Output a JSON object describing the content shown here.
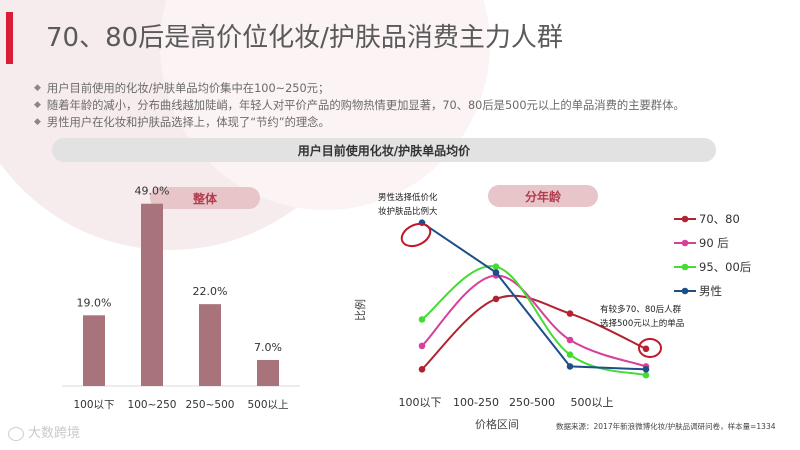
{
  "page_title": "70、80后是高价位化妆/护肤品消费主力人群",
  "bullets": [
    "用户目前使用的化妆/护肤单品均价集中在100~250元；",
    "随着年龄的减小，分布曲线越加陡峭，年轻人对平价产品的购物热情更加显著，70、80后是500元以上的单品消费的主要群体。",
    "男性用户在化妆和护肤品选择上，体现了“节约”的理念。"
  ],
  "bullet_symbol": "◆",
  "section_title": "用户目前使用化妆/护肤单品均价",
  "source_note": "数据来源：2017年新浪微博化妆/护肤品调研问卷，样本量=1334",
  "logo_text": "大数跨境",
  "colors": {
    "accent": "#d81e35",
    "bar": "#a8737a",
    "pill": "#e7c5c9",
    "pill_text": "#b23d4e",
    "section_bar": "#e2e2e2",
    "annotation_circle": "#c0182b"
  },
  "chart_data": [
    {
      "type": "bar",
      "title": "整体",
      "categories": [
        "100以下",
        "100~250",
        "250~500",
        "500以上"
      ],
      "values": [
        19.0,
        49.0,
        22.0,
        7.0
      ],
      "data_labels": [
        "19.0%",
        "49.0%",
        "22.0%",
        "7.0%"
      ],
      "ylim": [
        0,
        50
      ],
      "grid": false
    },
    {
      "type": "line",
      "title": "分年龄",
      "xlabel": "价格区间",
      "ylabel": "比例",
      "categories": [
        "100以下",
        "100-250",
        "250-500",
        "500以上"
      ],
      "ylim": [
        0,
        60
      ],
      "grid": false,
      "legend_position": "right",
      "series": [
        {
          "name": "70、80",
          "color": "#b22230",
          "values": [
            5,
            29,
            24,
            12
          ]
        },
        {
          "name": "90 后",
          "color": "#d6409a",
          "values": [
            13,
            37,
            15,
            6
          ]
        },
        {
          "name": "95、00后",
          "color": "#44dc33",
          "values": [
            22,
            40,
            10,
            3
          ]
        },
        {
          "name": "男性",
          "color": "#1c4e8a",
          "values": [
            55,
            38,
            6,
            5
          ]
        }
      ],
      "annotations": [
        {
          "text": "男性选择低价化妆护肤品比例大",
          "lines": [
            "男性选择低价化",
            "妆护肤品比例大"
          ]
        },
        {
          "text": "有较多70、80后人群选择500元以上的单品",
          "lines": [
            "有较多70、80后人群",
            "选择500元以上的单品"
          ]
        }
      ]
    }
  ]
}
